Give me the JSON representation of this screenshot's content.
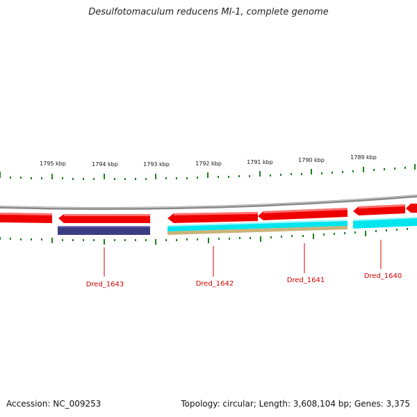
{
  "title": "Desulfotomaculum reducens MI-1, complete genome",
  "accession": "Accession: NC_009253",
  "summary": "Topology: circular; Length: 3,608,104 bp; Genes: 3,375",
  "ruler_labels": [
    "1795 kbp",
    "1794 kbp",
    "1793 kbp",
    "1792 kbp",
    "1791 kbp",
    "1790 kbp",
    "1789 kbp"
  ],
  "gene_labels": [
    "Dred_1643",
    "Dred_1642",
    "Dred_1641",
    "Dred_1640"
  ],
  "colors": {
    "backbone": "#8a8a8a",
    "forward_arrow": "#ee0000",
    "cog_navy": "#3c3c84",
    "cog_cyan": "#00e5ee",
    "cog_tan": "#c8b47a",
    "ticks": "#1a7f1a",
    "gene_label": "#cc0000"
  }
}
